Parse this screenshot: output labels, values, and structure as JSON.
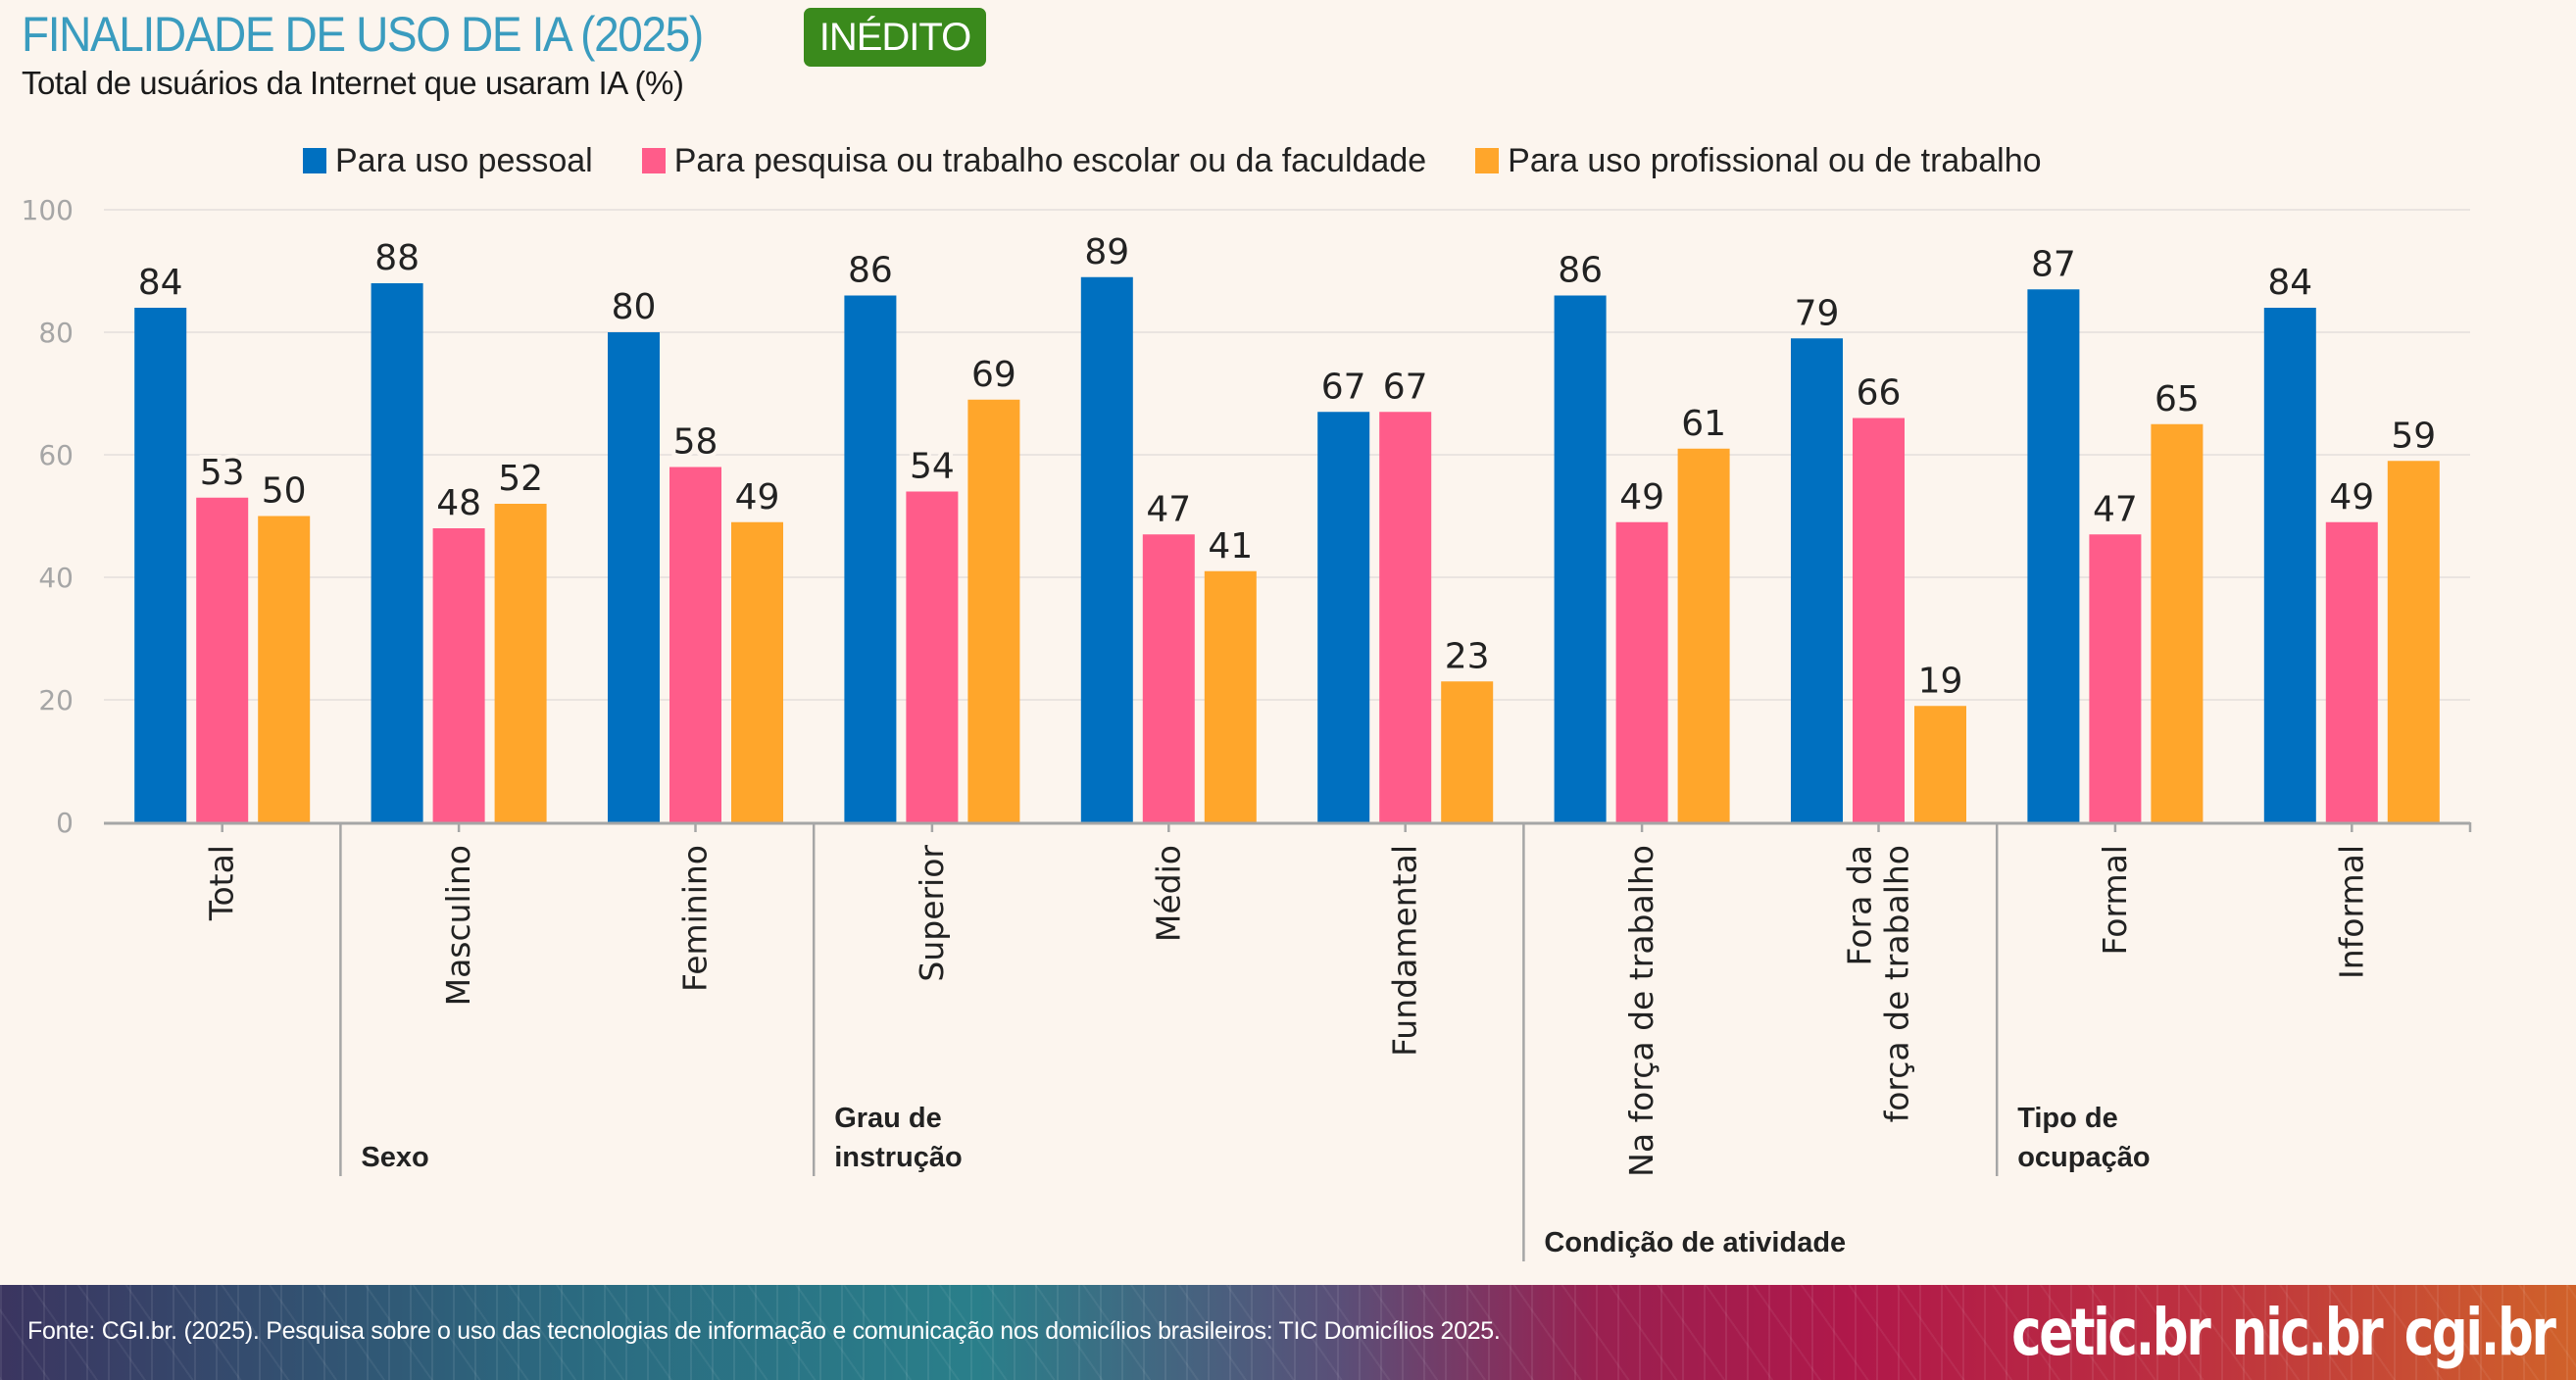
{
  "header": {
    "title": "FINALIDADE DE USO DE IA (2025)",
    "badge": "INÉDITO",
    "subtitle": "Total de usuários da Internet que usaram IA (%)"
  },
  "colors": {
    "title": "#3a9cbf",
    "badge_bg": "#3a8a1c",
    "series": [
      "#0070c0",
      "#ff5c8a",
      "#ffa62b"
    ]
  },
  "chart_data": {
    "type": "bar",
    "title": "FINALIDADE DE USO DE IA (2025)",
    "subtitle": "Total de usuários da Internet que usaram IA (%)",
    "xlabel": "",
    "ylabel": "",
    "ylim": [
      0,
      100
    ],
    "yticks": [
      0,
      20,
      40,
      60,
      80,
      100
    ],
    "grid": true,
    "legend_position": "top-center",
    "categories": [
      "Total",
      "Masculino",
      "Feminino",
      "Superior",
      "Médio",
      "Fundamental",
      "Na força de trabalho",
      "Fora da\nforça de trabalho",
      "Formal",
      "Informal"
    ],
    "category_lines": [
      [
        "Total"
      ],
      [
        "Masculino"
      ],
      [
        "Feminino"
      ],
      [
        "Superior"
      ],
      [
        "Médio"
      ],
      [
        "Fundamental"
      ],
      [
        "Na força de trabalho"
      ],
      [
        "Fora da",
        "força de trabalho"
      ],
      [
        "Formal"
      ],
      [
        "Informal"
      ]
    ],
    "groups": [
      {
        "label_lines": [
          "Sexo"
        ],
        "start": 1,
        "end": 2
      },
      {
        "label_lines": [
          "Grau de",
          "instrução"
        ],
        "start": 3,
        "end": 5
      },
      {
        "label_lines": [
          "Condição de atividade"
        ],
        "start": 6,
        "end": 7
      },
      {
        "label_lines": [
          "Tipo de",
          "ocupação"
        ],
        "start": 8,
        "end": 9
      }
    ],
    "series": [
      {
        "name": "Para uso pessoal",
        "color": "#0070c0",
        "values": [
          84,
          88,
          80,
          86,
          89,
          67,
          86,
          79,
          87,
          84
        ]
      },
      {
        "name": "Para pesquisa ou trabalho escolar ou da faculdade",
        "color": "#ff5c8a",
        "values": [
          53,
          48,
          58,
          54,
          47,
          67,
          49,
          66,
          47,
          49
        ]
      },
      {
        "name": "Para uso profissional ou de trabalho",
        "color": "#ffa62b",
        "values": [
          50,
          52,
          49,
          69,
          41,
          23,
          61,
          19,
          65,
          59
        ]
      }
    ]
  },
  "footer": {
    "source": "Fonte: CGI.br. (2025). Pesquisa sobre o uso das tecnologias de informação e comunicação nos domicílios brasileiros: TIC Domicílios 2025.",
    "logos": [
      "cetic.br",
      "nic.br",
      "cgi.br"
    ]
  }
}
